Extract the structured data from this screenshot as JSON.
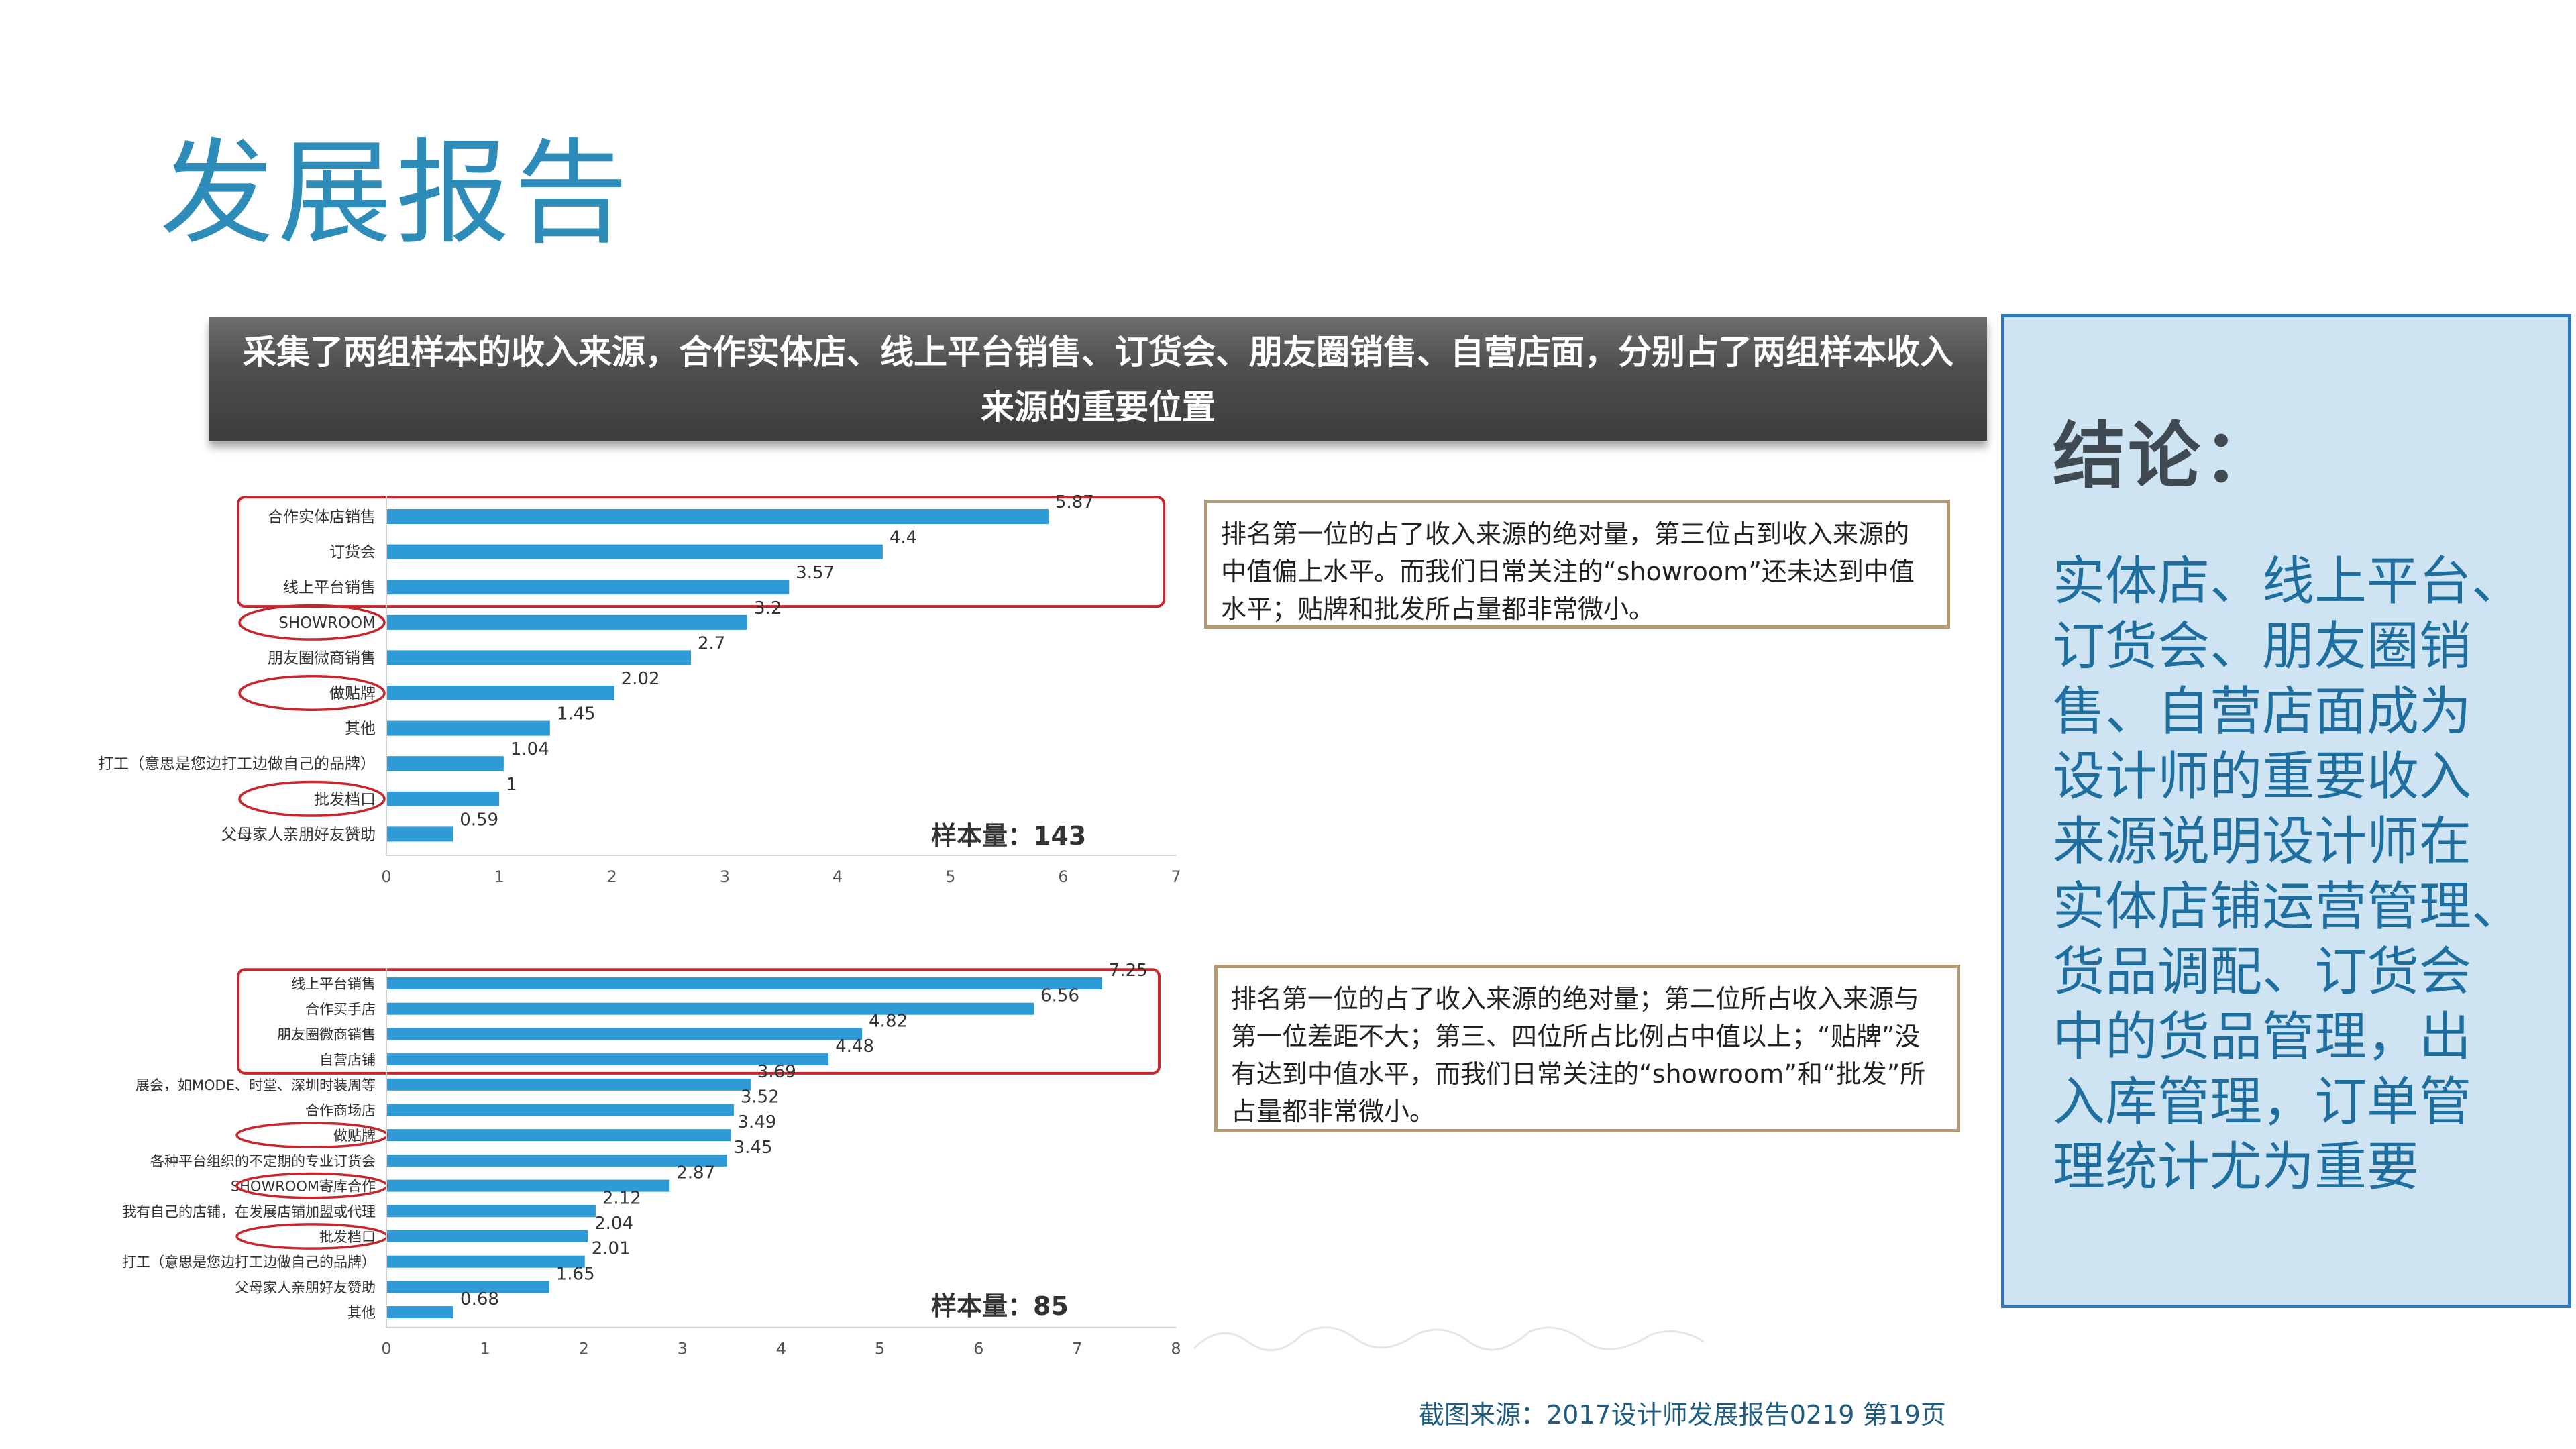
{
  "page": {
    "title": "发展报告",
    "banner": "采集了两组样本的收入来源，合作实体店、线上平台销售、订货会、朋友圈销售、自营店面，分别占了两组样本收入来源的重要位置",
    "source_note": "截图来源：2017设计师发展报告0219 第19页"
  },
  "notes": {
    "chart1": "排名第一位的占了收入来源的绝对量，第三位占到收入来源的中值偏上水平。而我们日常关注的“showroom”还未达到中值水平；贴牌和批发所占量都非常微小。",
    "chart2": "排名第一位的占了收入来源的绝对量；第二位所占收入来源与第一位差距不大；第三、四位所占比例占中值以上；“贴牌”没有达到中值水平，而我们日常关注的“showroom”和“批发”所占量都非常微小。"
  },
  "conclusion": {
    "title": "结论：",
    "lines": [
      "实体店、线上平台、",
      "订货会、朋友圈销",
      "售、自营店面成为",
      "设计师的重要收入",
      "来源说明设计师在",
      "实体店铺运营管理、",
      "货品调配、订货会",
      "中的货品管理，出",
      "入库管理，订单管",
      "理统计尤为重要"
    ]
  },
  "colors": {
    "bar": "#2e9bd6",
    "highlight": "#c8262c",
    "title": "#2e8cb8",
    "panel_bg": "#cfe4f2",
    "panel_border": "#2f75b5",
    "note_border": "#b49a74"
  },
  "chart_data": [
    {
      "type": "bar",
      "orientation": "horizontal",
      "categories": [
        "合作实体店销售",
        "订货会",
        "线上平台销售",
        "SHOWROOM",
        "朋友圈微商销售",
        "做贴牌",
        "其他",
        "打工（意思是您边打工边做自己的品牌）",
        "批发档口",
        "父母家人亲朋好友赞助"
      ],
      "values": [
        5.87,
        4.4,
        3.57,
        3.2,
        2.7,
        2.02,
        1.45,
        1.04,
        1,
        0.59
      ],
      "value_labels": [
        "5.87",
        "4.4",
        "3.57",
        "3.2",
        "2.7",
        "2.02",
        "1.45",
        "1.04",
        "1",
        "0.59"
      ],
      "xlim": [
        0,
        7
      ],
      "x_ticks": [
        "0",
        "1",
        "2",
        "3",
        "4",
        "5",
        "6",
        "7"
      ],
      "sample_label": "样本量：143",
      "highlight_top": 3,
      "circled": [
        3,
        5,
        8
      ]
    },
    {
      "type": "bar",
      "orientation": "horizontal",
      "categories": [
        "线上平台销售",
        "合作买手店",
        "朋友圈微商销售",
        "自营店铺",
        "展会，如MODE、时堂、深圳时装周等",
        "合作商场店",
        "做贴牌",
        "各种平台组织的不定期的专业订货会",
        "SHOWROOM寄库合作",
        "我有自己的店铺，在发展店铺加盟或代理",
        "批发档口",
        "打工（意思是您边打工边做自己的品牌）",
        "父母家人亲朋好友赞助",
        "其他"
      ],
      "values": [
        7.25,
        6.56,
        4.82,
        4.48,
        3.69,
        3.52,
        3.49,
        3.45,
        2.87,
        2.12,
        2.04,
        2.01,
        1.65,
        0.68
      ],
      "value_labels": [
        "7.25",
        "6.56",
        "4.82",
        "4.48",
        "3.69",
        "3.52",
        "3.49",
        "3.45",
        "2.87",
        "2.12",
        "2.04",
        "2.01",
        "1.65",
        "0.68"
      ],
      "xlim": [
        0,
        8
      ],
      "x_ticks": [
        "0",
        "1",
        "2",
        "3",
        "4",
        "5",
        "6",
        "7",
        "8"
      ],
      "sample_label": "样本量：85",
      "highlight_top": 4,
      "circled": [
        6,
        8,
        10
      ]
    }
  ]
}
